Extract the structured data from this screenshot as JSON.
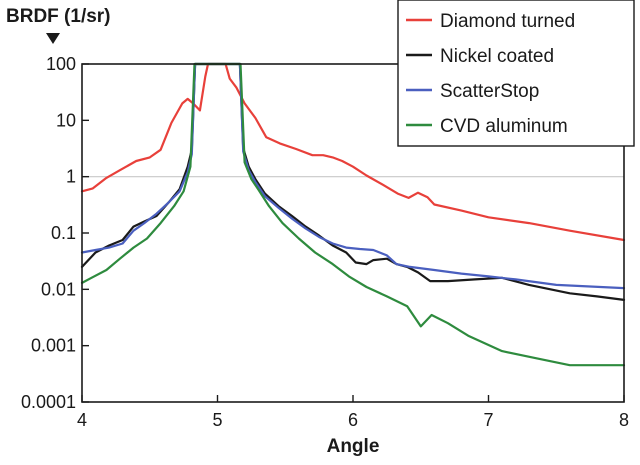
{
  "chart_data": {
    "type": "line",
    "ylabel": "BRDF (1/sr)",
    "xlabel": "Angle",
    "xlim": [
      4,
      8
    ],
    "ylim": [
      0.0001,
      100
    ],
    "yscale": "log",
    "x_ticks": [
      4,
      5,
      6,
      7,
      8
    ],
    "x_tick_labels": [
      "4",
      "5",
      "6",
      "7",
      "8"
    ],
    "y_ticks": [
      0.0001,
      0.001,
      0.01,
      0.1,
      1,
      10,
      100
    ],
    "y_tick_labels": [
      "0.0001",
      "0.001",
      "0.01",
      "0.1",
      "1",
      "10",
      "100"
    ],
    "grid": "horizontal line at 1 only",
    "legend_position": "top-right",
    "series": [
      {
        "name": "Diamond turned",
        "color": "#e8403a",
        "points": [
          [
            4.0,
            0.55
          ],
          [
            4.08,
            0.62
          ],
          [
            4.18,
            0.95
          ],
          [
            4.28,
            1.3
          ],
          [
            4.4,
            1.9
          ],
          [
            4.5,
            2.2
          ],
          [
            4.58,
            3.0
          ],
          [
            4.66,
            9.0
          ],
          [
            4.74,
            20
          ],
          [
            4.78,
            24
          ],
          [
            4.82,
            20
          ],
          [
            4.87,
            15
          ],
          [
            4.91,
            60
          ],
          [
            4.93,
            100
          ],
          [
            5.06,
            100
          ],
          [
            5.09,
            55
          ],
          [
            5.14,
            38
          ],
          [
            5.2,
            20
          ],
          [
            5.28,
            11
          ],
          [
            5.36,
            5.0
          ],
          [
            5.46,
            3.9
          ],
          [
            5.58,
            3.1
          ],
          [
            5.7,
            2.4
          ],
          [
            5.78,
            2.4
          ],
          [
            5.85,
            2.2
          ],
          [
            5.92,
            1.9
          ],
          [
            6.0,
            1.5
          ],
          [
            6.1,
            1.05
          ],
          [
            6.22,
            0.72
          ],
          [
            6.33,
            0.5
          ],
          [
            6.41,
            0.42
          ],
          [
            6.48,
            0.52
          ],
          [
            6.55,
            0.43
          ],
          [
            6.6,
            0.32
          ],
          [
            6.8,
            0.25
          ],
          [
            7.0,
            0.19
          ],
          [
            7.3,
            0.15
          ],
          [
            7.6,
            0.11
          ],
          [
            8.0,
            0.075
          ]
        ]
      },
      {
        "name": "Nickel coated",
        "color": "#1a1a1a",
        "points": [
          [
            4.0,
            0.025
          ],
          [
            4.1,
            0.045
          ],
          [
            4.2,
            0.06
          ],
          [
            4.3,
            0.075
          ],
          [
            4.38,
            0.13
          ],
          [
            4.46,
            0.16
          ],
          [
            4.55,
            0.2
          ],
          [
            4.64,
            0.35
          ],
          [
            4.72,
            0.6
          ],
          [
            4.78,
            1.5
          ],
          [
            4.81,
            3.0
          ],
          [
            4.835,
            100
          ],
          [
            5.165,
            100
          ],
          [
            5.19,
            3.2
          ],
          [
            5.23,
            1.5
          ],
          [
            5.28,
            0.9
          ],
          [
            5.35,
            0.5
          ],
          [
            5.45,
            0.3
          ],
          [
            5.55,
            0.2
          ],
          [
            5.65,
            0.13
          ],
          [
            5.75,
            0.09
          ],
          [
            5.85,
            0.06
          ],
          [
            5.95,
            0.045
          ],
          [
            6.02,
            0.03
          ],
          [
            6.1,
            0.028
          ],
          [
            6.15,
            0.033
          ],
          [
            6.25,
            0.035
          ],
          [
            6.32,
            0.028
          ],
          [
            6.4,
            0.025
          ],
          [
            6.48,
            0.02
          ],
          [
            6.57,
            0.014
          ],
          [
            6.7,
            0.014
          ],
          [
            6.9,
            0.015
          ],
          [
            7.1,
            0.016
          ],
          [
            7.3,
            0.012
          ],
          [
            7.6,
            0.0085
          ],
          [
            7.8,
            0.0075
          ],
          [
            8.0,
            0.0065
          ]
        ]
      },
      {
        "name": "ScatterStop",
        "color": "#4a5fbf",
        "points": [
          [
            4.0,
            0.045
          ],
          [
            4.1,
            0.05
          ],
          [
            4.2,
            0.055
          ],
          [
            4.3,
            0.065
          ],
          [
            4.38,
            0.11
          ],
          [
            4.46,
            0.15
          ],
          [
            4.55,
            0.22
          ],
          [
            4.64,
            0.35
          ],
          [
            4.72,
            0.55
          ],
          [
            4.78,
            1.2
          ],
          [
            4.81,
            2.5
          ],
          [
            4.835,
            100
          ],
          [
            5.165,
            100
          ],
          [
            5.19,
            2.8
          ],
          [
            5.23,
            1.3
          ],
          [
            5.28,
            0.8
          ],
          [
            5.35,
            0.45
          ],
          [
            5.45,
            0.28
          ],
          [
            5.55,
            0.18
          ],
          [
            5.65,
            0.12
          ],
          [
            5.75,
            0.085
          ],
          [
            5.85,
            0.065
          ],
          [
            5.95,
            0.055
          ],
          [
            6.05,
            0.052
          ],
          [
            6.15,
            0.05
          ],
          [
            6.25,
            0.04
          ],
          [
            6.32,
            0.028
          ],
          [
            6.42,
            0.025
          ],
          [
            6.6,
            0.022
          ],
          [
            6.8,
            0.019
          ],
          [
            7.0,
            0.017
          ],
          [
            7.2,
            0.015
          ],
          [
            7.5,
            0.012
          ],
          [
            8.0,
            0.0105
          ]
        ]
      },
      {
        "name": "CVD aluminum",
        "color": "#2e8b3e",
        "points": [
          [
            4.0,
            0.013
          ],
          [
            4.07,
            0.016
          ],
          [
            4.18,
            0.022
          ],
          [
            4.28,
            0.035
          ],
          [
            4.38,
            0.055
          ],
          [
            4.48,
            0.08
          ],
          [
            4.58,
            0.15
          ],
          [
            4.68,
            0.3
          ],
          [
            4.75,
            0.55
          ],
          [
            4.8,
            1.5
          ],
          [
            4.83,
            100
          ],
          [
            5.17,
            100
          ],
          [
            5.2,
            1.8
          ],
          [
            5.25,
            0.9
          ],
          [
            5.3,
            0.6
          ],
          [
            5.38,
            0.3
          ],
          [
            5.48,
            0.15
          ],
          [
            5.6,
            0.08
          ],
          [
            5.72,
            0.045
          ],
          [
            5.85,
            0.028
          ],
          [
            5.97,
            0.017
          ],
          [
            6.1,
            0.011
          ],
          [
            6.25,
            0.0075
          ],
          [
            6.4,
            0.005
          ],
          [
            6.5,
            0.0022
          ],
          [
            6.58,
            0.0035
          ],
          [
            6.7,
            0.0025
          ],
          [
            6.85,
            0.0015
          ],
          [
            7.1,
            0.0008
          ],
          [
            7.35,
            0.0006
          ],
          [
            7.6,
            0.00045
          ],
          [
            8.0,
            0.00045
          ]
        ]
      }
    ]
  }
}
